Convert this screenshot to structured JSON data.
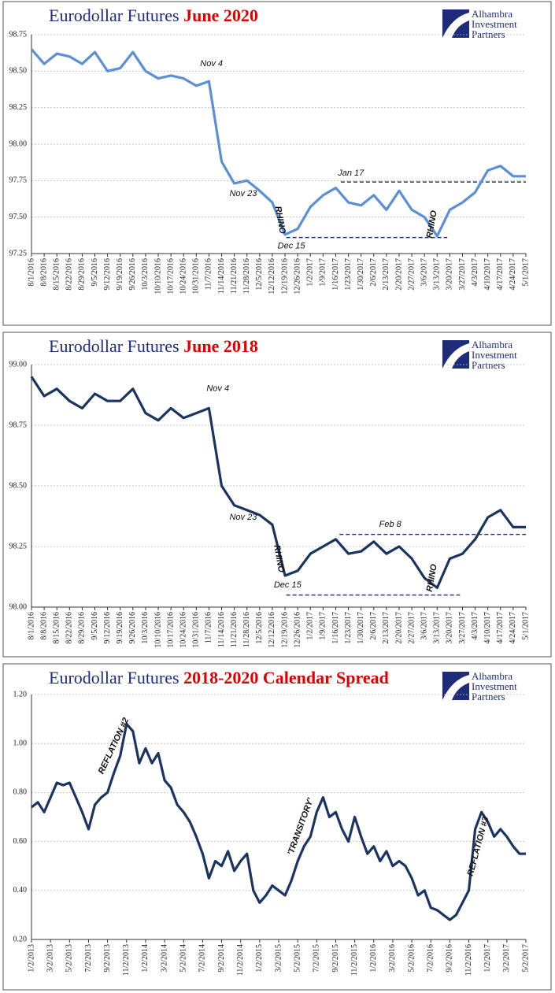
{
  "logo": [
    "Alhambra",
    "Investment",
    "Partners"
  ],
  "chart_data": [
    {
      "type": "line",
      "title": "Eurodollar Futures",
      "title_highlight": "June 2020",
      "categories": [
        "8/1/2016",
        "8/8/2016",
        "8/15/2016",
        "8/22/2016",
        "8/29/2016",
        "9/5/2016",
        "9/12/2016",
        "9/19/2016",
        "9/26/2016",
        "10/3/2016",
        "10/10/2016",
        "10/17/2016",
        "10/24/2016",
        "10/31/2016",
        "11/7/2016",
        "11/14/2016",
        "11/21/2016",
        "11/28/2016",
        "12/5/2016",
        "12/12/2016",
        "12/19/2016",
        "12/26/2016",
        "1/2/2017",
        "1/9/2017",
        "1/16/2017",
        "1/23/2017",
        "1/30/2017",
        "2/6/2017",
        "2/13/2017",
        "2/20/2017",
        "2/27/2017",
        "3/6/2017",
        "3/13/2017",
        "3/20/2017",
        "3/27/2017",
        "4/3/2017",
        "4/10/2017",
        "4/17/2017",
        "4/24/2017",
        "5/1/2017"
      ],
      "values": [
        98.65,
        98.55,
        98.62,
        98.6,
        98.55,
        98.63,
        98.5,
        98.52,
        98.63,
        98.5,
        98.45,
        98.47,
        98.45,
        98.4,
        98.43,
        97.88,
        97.73,
        97.75,
        97.68,
        97.6,
        97.38,
        97.42,
        97.57,
        97.65,
        97.7,
        97.6,
        97.58,
        97.65,
        97.55,
        97.68,
        97.55,
        97.5,
        97.37,
        97.55,
        97.6,
        97.67,
        97.82,
        97.85,
        97.78,
        97.78
      ],
      "color": "#5b8fd6",
      "ylim": [
        97.25,
        98.75
      ],
      "yticks": [
        97.25,
        {
          "value": 97.5,
          "label": "97.50"
        },
        97.75,
        {
          "value": 98,
          "label": "98.00"
        },
        98.25,
        {
          "value": 98.5,
          "label": "98.50"
        },
        98.75
      ],
      "grid": true,
      "reference_lines": [
        97.74,
        97.36
      ],
      "annotations": [
        "Nov 4",
        "Nov 23",
        "Dec 15",
        "Jan 17",
        "RHINO",
        "RHINO"
      ]
    },
    {
      "type": "line",
      "title": "Eurodollar Futures",
      "title_highlight": "June 2018",
      "categories": [
        "8/1/2016",
        "8/8/2016",
        "8/15/2016",
        "8/22/2016",
        "8/29/2016",
        "9/5/2016",
        "9/12/2016",
        "9/19/2016",
        "9/26/2016",
        "10/3/2016",
        "10/10/2016",
        "10/17/2016",
        "10/24/2016",
        "10/31/2016",
        "11/7/2016",
        "11/14/2016",
        "11/21/2016",
        "11/28/2016",
        "12/5/2016",
        "12/12/2016",
        "12/19/2016",
        "12/26/2016",
        "1/2/2017",
        "1/9/2017",
        "1/16/2017",
        "1/23/2017",
        "1/30/2017",
        "2/6/2017",
        "2/13/2017",
        "2/20/2017",
        "2/27/2017",
        "3/6/2017",
        "3/13/2017",
        "3/20/2017",
        "3/27/2017",
        "4/3/2017",
        "4/10/2017",
        "4/17/2017",
        "4/24/2017",
        "5/1/2017"
      ],
      "values": [
        98.95,
        98.87,
        98.9,
        98.85,
        98.82,
        98.88,
        98.85,
        98.85,
        98.9,
        98.8,
        98.77,
        98.82,
        98.78,
        98.8,
        98.82,
        98.5,
        98.42,
        98.4,
        98.38,
        98.34,
        98.13,
        98.15,
        98.22,
        98.25,
        98.28,
        98.22,
        98.23,
        98.27,
        98.22,
        98.25,
        98.2,
        98.12,
        98.08,
        98.2,
        98.22,
        98.28,
        98.37,
        98.4,
        98.33,
        98.33
      ],
      "color": "#1c3461",
      "ylim": [
        98,
        99
      ],
      "yticks": [
        {
          "value": 98,
          "label": "98.00"
        },
        98.25,
        {
          "value": 98.5,
          "label": "98.50"
        },
        98.75,
        {
          "value": 99,
          "label": "99.00"
        }
      ],
      "grid": true,
      "reference_lines": [
        98.3,
        98.05
      ],
      "annotations": [
        "Nov 4",
        "Nov 23",
        "Dec 15",
        "Feb 8",
        "RHINO",
        "RHINO"
      ]
    },
    {
      "type": "line",
      "title": "Eurodollar Futures",
      "title_highlight": "2018-2020 Calendar Spread",
      "categories": [
        "1/2/2013",
        null,
        null,
        "3/2/2013",
        null,
        null,
        "5/2/2013",
        null,
        null,
        "7/2/2013",
        null,
        null,
        "9/2/2013",
        null,
        null,
        "11/2/2013",
        null,
        null,
        "1/2/2014",
        null,
        null,
        "3/2/2014",
        null,
        null,
        "5/2/2014",
        null,
        null,
        "7/2/2014",
        null,
        null,
        "9/2/2014",
        null,
        null,
        "11/2/2014",
        null,
        null,
        "1/2/2015",
        null,
        null,
        "3/2/2015",
        null,
        null,
        "5/2/2015",
        null,
        null,
        "7/2/2015",
        null,
        null,
        "9/2/2015",
        null,
        null,
        "11/2/2015",
        null,
        null,
        "1/2/2016",
        null,
        null,
        "3/2/2016",
        null,
        null,
        "5/2/2016",
        null,
        null,
        "7/2/2016",
        null,
        null,
        "9/2/2016",
        null,
        null,
        "11/2/2016",
        null,
        null,
        "1/2/2017",
        null,
        null,
        "3/2/2017",
        null,
        null,
        "5/2/2017"
      ],
      "values": [
        0.74,
        0.76,
        0.72,
        0.78,
        0.84,
        0.83,
        0.84,
        0.78,
        0.72,
        0.65,
        0.75,
        0.78,
        0.8,
        0.88,
        0.95,
        1.08,
        1.05,
        0.92,
        0.98,
        0.92,
        0.96,
        0.85,
        0.82,
        0.75,
        0.72,
        0.68,
        0.62,
        0.55,
        0.45,
        0.52,
        0.5,
        0.56,
        0.48,
        0.52,
        0.55,
        0.4,
        0.35,
        0.38,
        0.42,
        0.4,
        0.38,
        0.44,
        0.52,
        0.58,
        0.62,
        0.72,
        0.78,
        0.7,
        0.72,
        0.65,
        0.6,
        0.7,
        0.62,
        0.55,
        0.58,
        0.52,
        0.56,
        0.5,
        0.52,
        0.5,
        0.45,
        0.38,
        0.4,
        0.33,
        0.32,
        0.3,
        0.28,
        0.3,
        0.35,
        0.4,
        0.65,
        0.72,
        0.68,
        0.62,
        0.65,
        0.62,
        0.58,
        0.55,
        0.55
      ],
      "color": "#1c3461",
      "ylim": [
        0.2,
        1.2
      ],
      "yticks": [
        {
          "value": 0.2,
          "label": "0.20"
        },
        {
          "value": 0.4,
          "label": "0.40"
        },
        {
          "value": 0.6,
          "label": "0.60"
        },
        {
          "value": 0.8,
          "label": "0.80"
        },
        {
          "value": 1,
          "label": "1.00"
        },
        {
          "value": 1.2,
          "label": "1.20"
        }
      ],
      "grid": true,
      "annotations": [
        "REFLATION #2",
        "'TRANSITORY'",
        "REFLATION #3"
      ]
    }
  ]
}
